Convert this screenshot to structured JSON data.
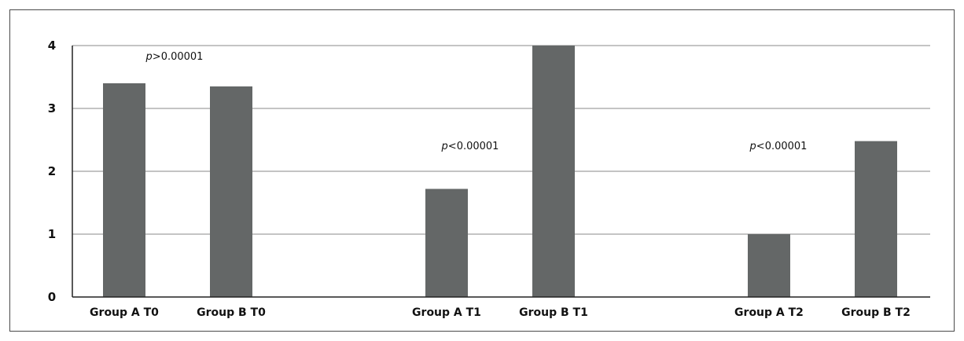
{
  "chart_data": {
    "type": "bar",
    "title": "",
    "xlabel": "",
    "ylabel": "",
    "ylim": [
      0,
      4
    ],
    "yticks": [
      "0",
      "1",
      "2",
      "3",
      "4"
    ],
    "grid": true,
    "categories": [
      "Group A T0",
      "Group B T0",
      "Group A T1",
      "Group B T1",
      "Group A T2",
      "Group B T2"
    ],
    "values": [
      3.4,
      3.35,
      1.72,
      4.0,
      1.0,
      2.48
    ],
    "bar_color": "#646767",
    "annotations": [
      {
        "p": "p",
        "rel": ">0.00001",
        "group": "T0"
      },
      {
        "p": "p",
        "rel": "<0.00001",
        "group": "T1"
      },
      {
        "p": "p",
        "rel": "<0.00001",
        "group": "T2"
      }
    ]
  }
}
